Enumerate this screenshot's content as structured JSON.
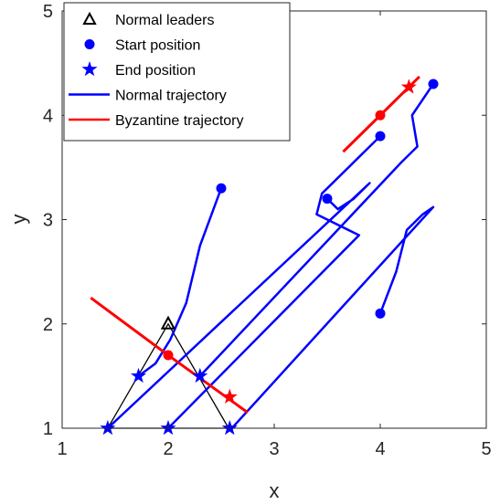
{
  "chart_data": {
    "type": "line",
    "xlabel": "x",
    "ylabel": "y",
    "xlim": [
      1,
      5
    ],
    "ylim": [
      1,
      5
    ],
    "xticks": [
      1,
      2,
      3,
      4,
      5
    ],
    "yticks": [
      1,
      2,
      3,
      4,
      5
    ],
    "grid": false,
    "legend_position": "top-left",
    "legend": [
      {
        "label": "Normal leaders",
        "marker": "triangle",
        "color": "#000000"
      },
      {
        "label": "Start position",
        "marker": "circle",
        "color": "#0000ff"
      },
      {
        "label": "End position",
        "marker": "star",
        "color": "#0000ff"
      },
      {
        "label": "Normal trajectory",
        "marker": "line",
        "color": "#0000ff"
      },
      {
        "label": "Byzantine trajectory",
        "marker": "line",
        "color": "#ff0000"
      }
    ],
    "colors": {
      "normal": "#0000ff",
      "byzantine": "#ff0000",
      "leaders": "#000000"
    },
    "leader_triangle": [
      [
        1.43,
        1.0
      ],
      [
        2.0,
        2.0
      ],
      [
        2.57,
        1.0
      ]
    ],
    "normal_trajectories": [
      {
        "points": [
          [
            2.5,
            3.3
          ],
          [
            2.3,
            2.75
          ],
          [
            2.17,
            2.2
          ],
          [
            2.02,
            1.85
          ],
          [
            1.88,
            1.62
          ],
          [
            1.72,
            1.5
          ]
        ]
      },
      {
        "points": [
          [
            4.0,
            2.1
          ],
          [
            4.15,
            2.5
          ],
          [
            4.25,
            2.9
          ],
          [
            4.4,
            3.05
          ],
          [
            4.5,
            3.12
          ],
          [
            2.6,
            1.0
          ]
        ]
      },
      {
        "points": [
          [
            3.5,
            3.2
          ],
          [
            3.6,
            3.1
          ],
          [
            3.75,
            3.2
          ],
          [
            3.9,
            3.35
          ],
          [
            1.43,
            1.0
          ]
        ]
      },
      {
        "points": [
          [
            4.0,
            3.8
          ],
          [
            3.8,
            3.6
          ],
          [
            3.45,
            3.25
          ],
          [
            3.4,
            3.05
          ],
          [
            3.8,
            2.85
          ],
          [
            2.0,
            1.0
          ]
        ]
      },
      {
        "points": [
          [
            4.5,
            4.3
          ],
          [
            4.3,
            4.0
          ],
          [
            4.35,
            3.7
          ],
          [
            4.2,
            3.55
          ],
          [
            2.3,
            1.5
          ]
        ]
      }
    ],
    "byzantine_trajectories": [
      {
        "points": [
          [
            1.27,
            2.25
          ],
          [
            2.0,
            1.7
          ],
          [
            2.75,
            1.15
          ]
        ]
      },
      {
        "points": [
          [
            3.65,
            3.65
          ],
          [
            4.0,
            4.0
          ],
          [
            4.37,
            4.37
          ]
        ]
      }
    ],
    "start_positions": [
      {
        "x": 2.5,
        "y": 3.3,
        "type": "normal"
      },
      {
        "x": 4.0,
        "y": 2.1,
        "type": "normal"
      },
      {
        "x": 3.5,
        "y": 3.2,
        "type": "normal"
      },
      {
        "x": 4.0,
        "y": 3.8,
        "type": "normal"
      },
      {
        "x": 4.5,
        "y": 4.3,
        "type": "normal"
      },
      {
        "x": 2.0,
        "y": 1.7,
        "type": "byzantine"
      },
      {
        "x": 4.0,
        "y": 4.0,
        "type": "byzantine"
      }
    ],
    "end_positions": [
      {
        "x": 1.43,
        "y": 1.0,
        "type": "normal"
      },
      {
        "x": 2.0,
        "y": 1.0,
        "type": "normal"
      },
      {
        "x": 2.58,
        "y": 1.0,
        "type": "normal"
      },
      {
        "x": 1.72,
        "y": 1.5,
        "type": "normal"
      },
      {
        "x": 2.3,
        "y": 1.5,
        "type": "normal"
      },
      {
        "x": 2.58,
        "y": 1.3,
        "type": "byzantine"
      },
      {
        "x": 4.27,
        "y": 4.27,
        "type": "byzantine"
      }
    ]
  }
}
